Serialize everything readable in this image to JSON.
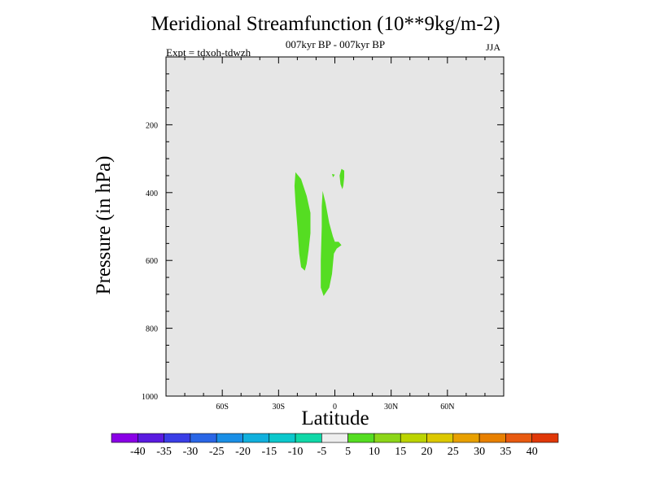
{
  "chart_data": {
    "type": "contour",
    "title": "Meridional Streamfunction (10**9kg/m-2)",
    "subtitle": "007kyr BP - 007kyr BP",
    "experiment": "Expt = tdxoh-tdwzh",
    "season": "JJA",
    "xlabel": "Latitude",
    "ylabel": "Pressure (in hPa)",
    "xlim": [
      -90,
      90
    ],
    "ylim": [
      1000,
      0
    ],
    "x_ticks": [
      {
        "value": -60,
        "label": "60S"
      },
      {
        "value": -30,
        "label": "30S"
      },
      {
        "value": 0,
        "label": "0"
      },
      {
        "value": 30,
        "label": "30N"
      },
      {
        "value": 60,
        "label": "60N"
      }
    ],
    "y_ticks": [
      {
        "value": 200,
        "label": "200"
      },
      {
        "value": 400,
        "label": "400"
      },
      {
        "value": 600,
        "label": "600"
      },
      {
        "value": 800,
        "label": "800"
      },
      {
        "value": 1000,
        "label": "1000"
      }
    ],
    "background_color": "#e6e6e6",
    "filled_regions": [
      {
        "level": "5 to 10",
        "color": "#55dd22",
        "points": [
          [
            -21,
            340
          ],
          [
            -18,
            360
          ],
          [
            -15,
            410
          ],
          [
            -13,
            460
          ],
          [
            -13,
            520
          ],
          [
            -14,
            570
          ],
          [
            -15,
            610
          ],
          [
            -16,
            630
          ],
          [
            -18,
            620
          ],
          [
            -19,
            580
          ],
          [
            -20,
            500
          ],
          [
            -21,
            430
          ],
          [
            -21.5,
            380
          ]
        ]
      },
      {
        "level": "5 to 10",
        "color": "#55dd22",
        "points": [
          [
            -6.5,
            395
          ],
          [
            -5,
            430
          ],
          [
            -3,
            490
          ],
          [
            -1,
            530
          ],
          [
            0,
            545
          ],
          [
            2,
            545
          ],
          [
            3.5,
            555
          ],
          [
            1,
            565
          ],
          [
            -0.5,
            580
          ],
          [
            -1.5,
            640
          ],
          [
            -3,
            680
          ],
          [
            -6,
            705
          ],
          [
            -7.5,
            680
          ],
          [
            -7.5,
            600
          ],
          [
            -7,
            500
          ],
          [
            -7,
            440
          ]
        ]
      },
      {
        "level": "5 to 10",
        "color": "#55dd22",
        "points": [
          [
            3.5,
            330
          ],
          [
            5,
            335
          ],
          [
            5,
            355
          ],
          [
            4.5,
            380
          ],
          [
            4,
            390
          ],
          [
            3,
            375
          ],
          [
            2.5,
            350
          ]
        ]
      },
      {
        "level": "5 to 10",
        "color": "#55dd22",
        "points": [
          [
            -1.5,
            345
          ],
          [
            0,
            347
          ],
          [
            -1,
            355
          ]
        ]
      }
    ],
    "colorbar": {
      "labels": [
        "-40",
        "-35",
        "-30",
        "-25",
        "-20",
        "-15",
        "-10",
        "-5",
        "5",
        "10",
        "15",
        "20",
        "25",
        "30",
        "35",
        "40"
      ],
      "colors": [
        "#8a00e6",
        "#5a1be0",
        "#3a3ee6",
        "#2a66e6",
        "#1a8fe6",
        "#11b0dd",
        "#0cc8cc",
        "#10d8a8",
        "#eeeeee",
        "#55dd22",
        "#8cd619",
        "#bcd400",
        "#dcc800",
        "#e8a000",
        "#e88000",
        "#e85a10",
        "#e03808"
      ]
    }
  }
}
